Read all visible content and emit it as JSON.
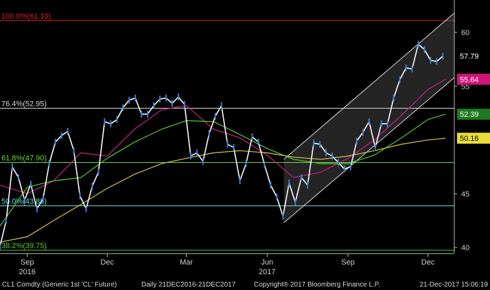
{
  "chart_data": {
    "type": "candlestick",
    "title": "",
    "xlabel": "",
    "ylabel": "",
    "ylim": [
      39.5,
      62.5
    ],
    "y_ticks": [
      40,
      45,
      55,
      60
    ],
    "y_tick_labels": [
      "40",
      "45",
      "55",
      "60"
    ],
    "x_range": [
      "2016-08-01",
      "2017-12-31"
    ],
    "x_ticks": [
      {
        "date": "2016-09-01",
        "label": "Sep"
      },
      {
        "date": "2016-12-01",
        "label": "Dec"
      },
      {
        "date": "2017-03-01",
        "label": "Mar"
      },
      {
        "date": "2017-06-01",
        "label": "Jun"
      },
      {
        "date": "2017-09-01",
        "label": "Sep"
      },
      {
        "date": "2017-12-01",
        "label": "Dec"
      }
    ],
    "x_years": [
      {
        "date": "2016-09-01",
        "label": "2016"
      },
      {
        "date": "2017-06-01",
        "label": "2017"
      }
    ],
    "grid": false,
    "price": [
      [
        "2016-08-01",
        40.1
      ],
      [
        "2016-08-08",
        42.5
      ],
      [
        "2016-08-15",
        47.5
      ],
      [
        "2016-08-22",
        46.5
      ],
      [
        "2016-08-29",
        44.4
      ],
      [
        "2016-09-05",
        45.9
      ],
      [
        "2016-09-12",
        43.6
      ],
      [
        "2016-09-19",
        44.5
      ],
      [
        "2016-09-26",
        47.8
      ],
      [
        "2016-10-03",
        49.8
      ],
      [
        "2016-10-10",
        50.4
      ],
      [
        "2016-10-17",
        50.8
      ],
      [
        "2016-10-24",
        49.0
      ],
      [
        "2016-10-31",
        44.8
      ],
      [
        "2016-11-07",
        43.6
      ],
      [
        "2016-11-14",
        45.7
      ],
      [
        "2016-11-21",
        47.0
      ],
      [
        "2016-11-28",
        51.7
      ],
      [
        "2016-12-05",
        51.5
      ],
      [
        "2016-12-12",
        51.9
      ],
      [
        "2016-12-19",
        53.0
      ],
      [
        "2016-12-26",
        53.7
      ],
      [
        "2017-01-02",
        53.9
      ],
      [
        "2017-01-09",
        52.4
      ],
      [
        "2017-01-16",
        52.4
      ],
      [
        "2017-01-23",
        53.2
      ],
      [
        "2017-01-30",
        53.8
      ],
      [
        "2017-02-06",
        53.9
      ],
      [
        "2017-02-13",
        53.4
      ],
      [
        "2017-02-20",
        54.0
      ],
      [
        "2017-02-27",
        53.3
      ],
      [
        "2017-03-06",
        48.5
      ],
      [
        "2017-03-13",
        48.8
      ],
      [
        "2017-03-20",
        48.0
      ],
      [
        "2017-03-27",
        50.6
      ],
      [
        "2017-04-03",
        52.2
      ],
      [
        "2017-04-10",
        53.2
      ],
      [
        "2017-04-17",
        49.6
      ],
      [
        "2017-04-24",
        49.3
      ],
      [
        "2017-05-01",
        46.2
      ],
      [
        "2017-05-08",
        47.8
      ],
      [
        "2017-05-15",
        50.3
      ],
      [
        "2017-05-22",
        49.8
      ],
      [
        "2017-05-29",
        47.7
      ],
      [
        "2017-06-05",
        45.8
      ],
      [
        "2017-06-12",
        44.7
      ],
      [
        "2017-06-19",
        42.9
      ],
      [
        "2017-06-26",
        46.0
      ],
      [
        "2017-07-03",
        44.2
      ],
      [
        "2017-07-10",
        46.5
      ],
      [
        "2017-07-17",
        45.8
      ],
      [
        "2017-07-24",
        49.7
      ],
      [
        "2017-07-31",
        49.6
      ],
      [
        "2017-08-07",
        48.8
      ],
      [
        "2017-08-14",
        48.5
      ],
      [
        "2017-08-21",
        47.9
      ],
      [
        "2017-08-28",
        47.3
      ],
      [
        "2017-09-04",
        47.5
      ],
      [
        "2017-09-11",
        49.9
      ],
      [
        "2017-09-18",
        50.7
      ],
      [
        "2017-09-25",
        51.7
      ],
      [
        "2017-10-02",
        49.3
      ],
      [
        "2017-10-09",
        51.5
      ],
      [
        "2017-10-16",
        51.5
      ],
      [
        "2017-10-23",
        53.9
      ],
      [
        "2017-10-30",
        55.6
      ],
      [
        "2017-11-06",
        56.7
      ],
      [
        "2017-11-13",
        56.6
      ],
      [
        "2017-11-20",
        58.9
      ],
      [
        "2017-11-27",
        58.4
      ],
      [
        "2017-12-04",
        57.4
      ],
      [
        "2017-12-11",
        57.3
      ],
      [
        "2017-12-18",
        57.8
      ]
    ],
    "series": [
      {
        "name": "",
        "color": "#cc2288",
        "values": [
          [
            "2016-08-01",
            45.8
          ],
          [
            "2016-09-01",
            45.0
          ],
          [
            "2016-10-01",
            46.2
          ],
          [
            "2016-11-01",
            48.8
          ],
          [
            "2016-12-01",
            48.5
          ],
          [
            "2017-01-01",
            51.0
          ],
          [
            "2017-02-01",
            52.8
          ],
          [
            "2017-03-01",
            53.2
          ],
          [
            "2017-04-01",
            51.0
          ],
          [
            "2017-05-01",
            50.2
          ],
          [
            "2017-06-01",
            48.6
          ],
          [
            "2017-07-01",
            46.5
          ],
          [
            "2017-08-01",
            47.0
          ],
          [
            "2017-09-01",
            48.3
          ],
          [
            "2017-10-01",
            50.0
          ],
          [
            "2017-11-01",
            52.3
          ],
          [
            "2017-12-01",
            54.7
          ],
          [
            "2017-12-21",
            55.64
          ]
        ]
      },
      {
        "name": "",
        "color": "#55cc33",
        "values": [
          [
            "2016-08-01",
            42.0
          ],
          [
            "2016-09-01",
            45.6
          ],
          [
            "2016-10-01",
            46.2
          ],
          [
            "2016-11-01",
            46.5
          ],
          [
            "2016-12-01",
            48.3
          ],
          [
            "2017-01-01",
            49.8
          ],
          [
            "2017-02-01",
            51.0
          ],
          [
            "2017-03-01",
            51.8
          ],
          [
            "2017-04-01",
            51.7
          ],
          [
            "2017-05-01",
            50.5
          ],
          [
            "2017-06-01",
            49.2
          ],
          [
            "2017-07-01",
            48.2
          ],
          [
            "2017-08-01",
            47.8
          ],
          [
            "2017-09-01",
            47.8
          ],
          [
            "2017-10-01",
            48.6
          ],
          [
            "2017-11-01",
            50.2
          ],
          [
            "2017-12-01",
            51.9
          ],
          [
            "2017-12-21",
            52.39
          ]
        ]
      },
      {
        "name": "",
        "color": "#d8c850",
        "values": [
          [
            "2016-08-01",
            40.5
          ],
          [
            "2016-09-01",
            41.0
          ],
          [
            "2016-10-01",
            42.5
          ],
          [
            "2016-11-01",
            44.0
          ],
          [
            "2016-12-01",
            45.5
          ],
          [
            "2017-01-01",
            46.8
          ],
          [
            "2017-02-01",
            47.8
          ],
          [
            "2017-03-01",
            48.3
          ],
          [
            "2017-04-01",
            48.8
          ],
          [
            "2017-05-01",
            49.0
          ],
          [
            "2017-06-01",
            48.8
          ],
          [
            "2017-07-01",
            48.4
          ],
          [
            "2017-08-01",
            48.2
          ],
          [
            "2017-09-01",
            48.5
          ],
          [
            "2017-10-01",
            49.0
          ],
          [
            "2017-11-01",
            49.6
          ],
          [
            "2017-12-01",
            50.0
          ],
          [
            "2017-12-21",
            50.16
          ]
        ]
      }
    ],
    "fib_levels": [
      {
        "label": "100.0%(61.10)",
        "value": 61.1,
        "color": "#e02020"
      },
      {
        "label": "76.4%(52.95)",
        "value": 52.95,
        "color": "#d8d8d8"
      },
      {
        "label": "61.8%(47.90)",
        "value": 47.9,
        "color": "#66dd33"
      },
      {
        "label": "50.0%(43.88)",
        "value": 43.88,
        "color": "#66dddd"
      },
      {
        "label": "38.2%(39.75)",
        "value": 39.75,
        "color": "#55cc33"
      }
    ],
    "channel": {
      "lower_start": [
        "2017-06-20",
        42.3
      ],
      "lower_end": [
        "2017-12-31",
        55.8
      ],
      "upper_start": [
        "2017-06-20",
        48.2
      ],
      "upper_end": [
        "2017-12-31",
        61.8
      ]
    },
    "price_tags": [
      {
        "label": "57.79",
        "value": 57.79,
        "bg": "#000000",
        "fg": "#ffffff"
      },
      {
        "label": "55.64",
        "value": 55.64,
        "bg": "#d0157a",
        "fg": "#ffffff"
      },
      {
        "label": "52.39",
        "value": 52.39,
        "bg": "#1f7a1f",
        "fg": "#ffffff"
      },
      {
        "label": "50.16",
        "value": 50.16,
        "bg": "#e8dc3a",
        "fg": "#000000"
      }
    ]
  },
  "footer": {
    "security": "CL1 Comdty (Generic 1st 'CL' Future)",
    "period": "Daily 21DEC2016-21DEC2017",
    "copyright": "Copyright® 2017 Bloomberg Finance L.P.",
    "timestamp": "21-Dec-2017 15:06:19"
  }
}
